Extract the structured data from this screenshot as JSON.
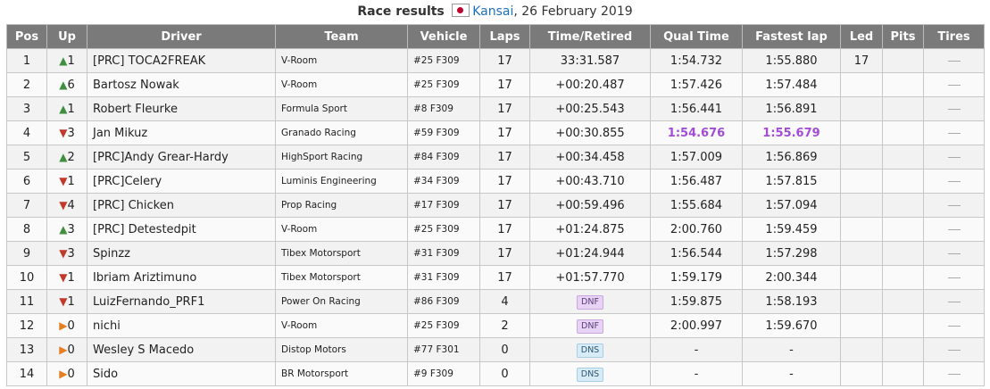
{
  "caption": {
    "title": "Race results",
    "location": "Kansai",
    "date": ", 26 February 2019"
  },
  "headers": [
    "Pos",
    "Up",
    "Driver",
    "Team",
    "Vehicle",
    "Laps",
    "Time/Retired",
    "Qual Time",
    "Fastest lap",
    "Led",
    "Pits",
    "Tires"
  ],
  "rows": [
    {
      "pos": "1",
      "dir": "up",
      "up": "1",
      "driver": "[PRC] TOCA2FREAK",
      "team": "V-Room",
      "vehicle": "#25 F309",
      "laps": "17",
      "time": "33:31.587",
      "qual": "1:54.732",
      "fastest": "1:55.880",
      "led": "17",
      "pits": ""
    },
    {
      "pos": "2",
      "dir": "up",
      "up": "6",
      "driver": "Bartosz Nowak",
      "team": "V-Room",
      "vehicle": "#25 F309",
      "laps": "17",
      "time": "+00:20.487",
      "qual": "1:57.426",
      "fastest": "1:57.484",
      "led": "",
      "pits": ""
    },
    {
      "pos": "3",
      "dir": "up",
      "up": "1",
      "driver": "Robert Fleurke",
      "team": "Formula Sport",
      "vehicle": "#8 F309",
      "laps": "17",
      "time": "+00:25.543",
      "qual": "1:56.441",
      "fastest": "1:56.891",
      "led": "",
      "pits": ""
    },
    {
      "pos": "4",
      "dir": "down",
      "up": "3",
      "driver": "Jan Mikuz",
      "team": "Granado Racing",
      "vehicle": "#59 F309",
      "laps": "17",
      "time": "+00:30.855",
      "qual": "1:54.676",
      "fastest": "1:55.679",
      "led": "",
      "pits": "",
      "best": true
    },
    {
      "pos": "5",
      "dir": "up",
      "up": "2",
      "driver": "[PRC]Andy Grear-Hardy",
      "team": "HighSport Racing",
      "vehicle": "#84 F309",
      "laps": "17",
      "time": "+00:34.458",
      "qual": "1:57.009",
      "fastest": "1:56.869",
      "led": "",
      "pits": ""
    },
    {
      "pos": "6",
      "dir": "down",
      "up": "1",
      "driver": "[PRC]Celery",
      "team": "Luminis Engineering",
      "vehicle": "#34 F309",
      "laps": "17",
      "time": "+00:43.710",
      "qual": "1:56.487",
      "fastest": "1:57.815",
      "led": "",
      "pits": ""
    },
    {
      "pos": "7",
      "dir": "down",
      "up": "4",
      "driver": "[PRC] Chicken",
      "team": "Prop Racing",
      "vehicle": "#17 F309",
      "laps": "17",
      "time": "+00:59.496",
      "qual": "1:55.684",
      "fastest": "1:57.094",
      "led": "",
      "pits": ""
    },
    {
      "pos": "8",
      "dir": "up",
      "up": "3",
      "driver": "[PRC] Detestedpit",
      "team": "V-Room",
      "vehicle": "#25 F309",
      "laps": "17",
      "time": "+01:24.875",
      "qual": "2:00.760",
      "fastest": "1:59.459",
      "led": "",
      "pits": ""
    },
    {
      "pos": "9",
      "dir": "down",
      "up": "3",
      "driver": "Spinzz",
      "team": "Tibex Motorsport",
      "vehicle": "#31 F309",
      "laps": "17",
      "time": "+01:24.944",
      "qual": "1:56.544",
      "fastest": "1:57.298",
      "led": "",
      "pits": ""
    },
    {
      "pos": "10",
      "dir": "down",
      "up": "1",
      "driver": "Ibriam Ariztimuno",
      "team": "Tibex Motorsport",
      "vehicle": "#31 F309",
      "laps": "17",
      "time": "+01:57.770",
      "qual": "1:59.179",
      "fastest": "2:00.344",
      "led": "",
      "pits": ""
    },
    {
      "pos": "11",
      "dir": "down",
      "up": "1",
      "driver": "LuizFernando_PRF1",
      "team": "Power On Racing",
      "vehicle": "#86 F309",
      "laps": "4",
      "time": "DNF",
      "status": "dnf",
      "qual": "1:59.875",
      "fastest": "1:58.193",
      "led": "",
      "pits": ""
    },
    {
      "pos": "12",
      "dir": "flat",
      "up": "0",
      "driver": "nichi",
      "team": "V-Room",
      "vehicle": "#25 F309",
      "laps": "2",
      "time": "DNF",
      "status": "dnf",
      "qual": "2:00.997",
      "fastest": "1:59.670",
      "led": "",
      "pits": ""
    },
    {
      "pos": "13",
      "dir": "flat",
      "up": "0",
      "driver": "Wesley S Macedo",
      "team": "Distop Motors",
      "vehicle": "#77 F301",
      "laps": "0",
      "time": "DNS",
      "status": "dns",
      "qual": "-",
      "fastest": "-",
      "led": "",
      "pits": ""
    },
    {
      "pos": "14",
      "dir": "flat",
      "up": "0",
      "driver": "Sido",
      "team": "BR Motorsport",
      "vehicle": "#9 F309",
      "laps": "0",
      "time": "DNS",
      "status": "dns",
      "qual": "-",
      "fastest": "-",
      "led": "",
      "pits": ""
    }
  ],
  "icons": {
    "up": "triangle-up-icon",
    "down": "triangle-down-icon",
    "flat": "triangle-right-icon",
    "tires": "dash-icon"
  },
  "colors": {
    "header_bg": "#7a7a7a",
    "up": "#3f8f3f",
    "down": "#c0392b",
    "flat": "#e67e22",
    "best_lap": "#a44bd8",
    "dnf_bg": "#e7d3f3",
    "dns_bg": "#d8ecf7"
  }
}
